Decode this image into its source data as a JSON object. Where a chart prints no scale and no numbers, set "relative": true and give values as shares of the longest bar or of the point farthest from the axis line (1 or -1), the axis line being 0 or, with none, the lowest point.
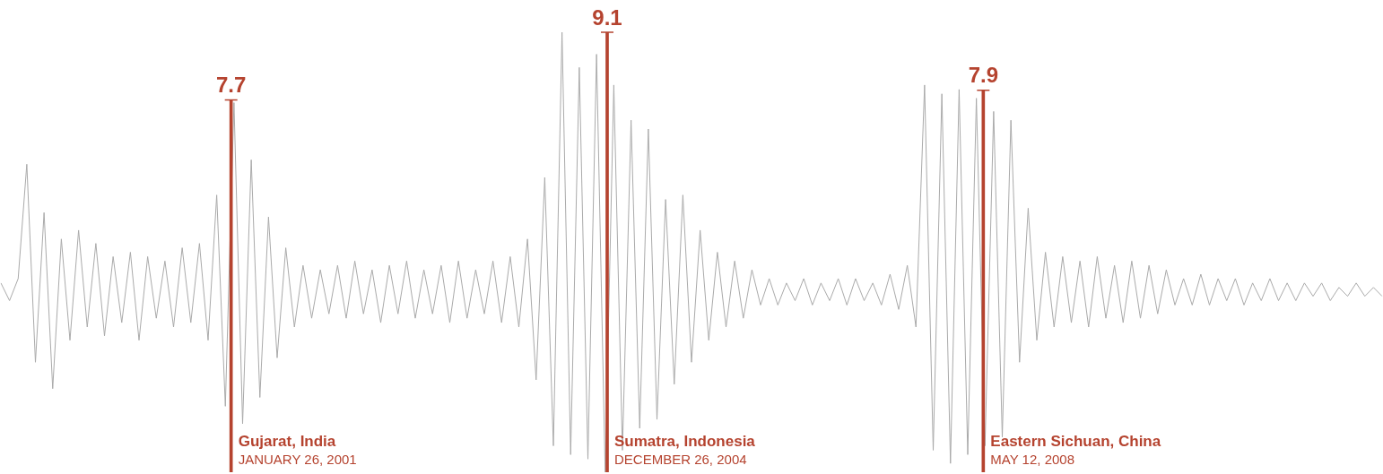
{
  "chart_data": [
    {
      "type": "line",
      "relative": true,
      "categories": [
        null,
        null,
        null,
        null,
        null,
        null,
        null,
        null,
        null,
        null,
        null,
        null,
        null,
        null,
        null,
        null,
        null,
        null,
        null,
        null,
        null,
        null,
        null,
        null,
        null,
        null,
        null,
        null,
        null,
        null,
        null,
        null,
        null,
        null,
        null,
        null,
        null,
        null,
        null,
        null,
        null,
        null,
        null,
        null,
        null,
        null,
        null,
        null,
        null,
        null,
        null,
        null,
        null,
        null,
        null,
        null,
        null,
        null,
        null,
        null,
        null,
        null,
        null,
        null,
        null,
        null,
        null,
        null,
        null,
        null,
        null,
        null,
        null,
        null,
        null,
        null,
        null,
        null,
        null,
        null,
        null,
        null,
        null,
        null,
        null,
        null,
        null,
        null,
        null,
        null,
        null,
        null,
        null,
        null,
        null,
        null,
        null,
        null,
        null,
        null,
        null,
        null,
        null,
        null,
        null,
        null,
        null,
        null,
        null,
        null,
        null,
        null,
        null,
        null,
        null,
        null,
        null,
        null,
        null,
        null,
        null,
        null,
        null,
        null,
        null,
        null,
        null,
        null,
        null,
        null,
        null,
        null,
        null,
        null,
        null,
        null,
        null,
        null,
        null,
        null,
        null,
        null,
        null,
        null,
        null,
        null,
        null,
        null,
        null,
        null,
        null,
        null,
        null,
        null,
        null,
        null,
        null,
        null,
        null,
        null,
        null
      ],
      "color": "#aaaaaa",
      "values": [
        0.43,
        0.39,
        0.44,
        0.7,
        0.25,
        0.59,
        0.19,
        0.53,
        0.3,
        0.55,
        0.33,
        0.52,
        0.31,
        0.49,
        0.34,
        0.5,
        0.3,
        0.49,
        0.35,
        0.48,
        0.33,
        0.51,
        0.34,
        0.52,
        0.3,
        0.63,
        0.15,
        0.84,
        0.11,
        0.71,
        0.17,
        0.58,
        0.26,
        0.51,
        0.33,
        0.47,
        0.35,
        0.46,
        0.36,
        0.47,
        0.35,
        0.48,
        0.36,
        0.46,
        0.34,
        0.47,
        0.36,
        0.48,
        0.35,
        0.46,
        0.36,
        0.47,
        0.34,
        0.48,
        0.35,
        0.46,
        0.36,
        0.48,
        0.34,
        0.49,
        0.33,
        0.53,
        0.21,
        0.67,
        0.06,
        1.0,
        0.04,
        0.92,
        0.03,
        0.95,
        0,
        0.88,
        0.05,
        0.8,
        0.1,
        0.78,
        0.12,
        0.62,
        0.2,
        0.63,
        0.25,
        0.55,
        0.3,
        0.5,
        0.33,
        0.48,
        0.35,
        0.46,
        0.38,
        0.44,
        0.38,
        0.43,
        0.39,
        0.44,
        0.38,
        0.43,
        0.39,
        0.44,
        0.38,
        0.44,
        0.39,
        0.43,
        0.38,
        0.45,
        0.37,
        0.47,
        0.33,
        0.88,
        0.05,
        0.86,
        0.02,
        0.87,
        0.04,
        0.85,
        0.06,
        0.82,
        0.08,
        0.8,
        0.25,
        0.6,
        0.3,
        0.5,
        0.33,
        0.49,
        0.34,
        0.48,
        0.33,
        0.49,
        0.35,
        0.47,
        0.34,
        0.48,
        0.35,
        0.47,
        0.36,
        0.46,
        0.38,
        0.44,
        0.38,
        0.45,
        0.38,
        0.44,
        0.39,
        0.44,
        0.38,
        0.43,
        0.39,
        0.44,
        0.39,
        0.43,
        0.39,
        0.43,
        0.4,
        0.43,
        0.39,
        0.42,
        0.4,
        0.43,
        0.4,
        0.42,
        0.4
      ]
    },
    {
      "type": "bar",
      "categories": [
        null,
        null,
        null
      ],
      "values": [
        7.7,
        9.1,
        7.9
      ],
      "color": "#b5432f",
      "data_labels": true,
      "annotations": [
        "Gujarat, India",
        "JANUARY 26, 2001",
        "Sumatra, Indonesia",
        "DECEMBER 26, 2004",
        "Eastern Sichuan, China",
        "MAY 12, 2008"
      ]
    }
  ]
}
